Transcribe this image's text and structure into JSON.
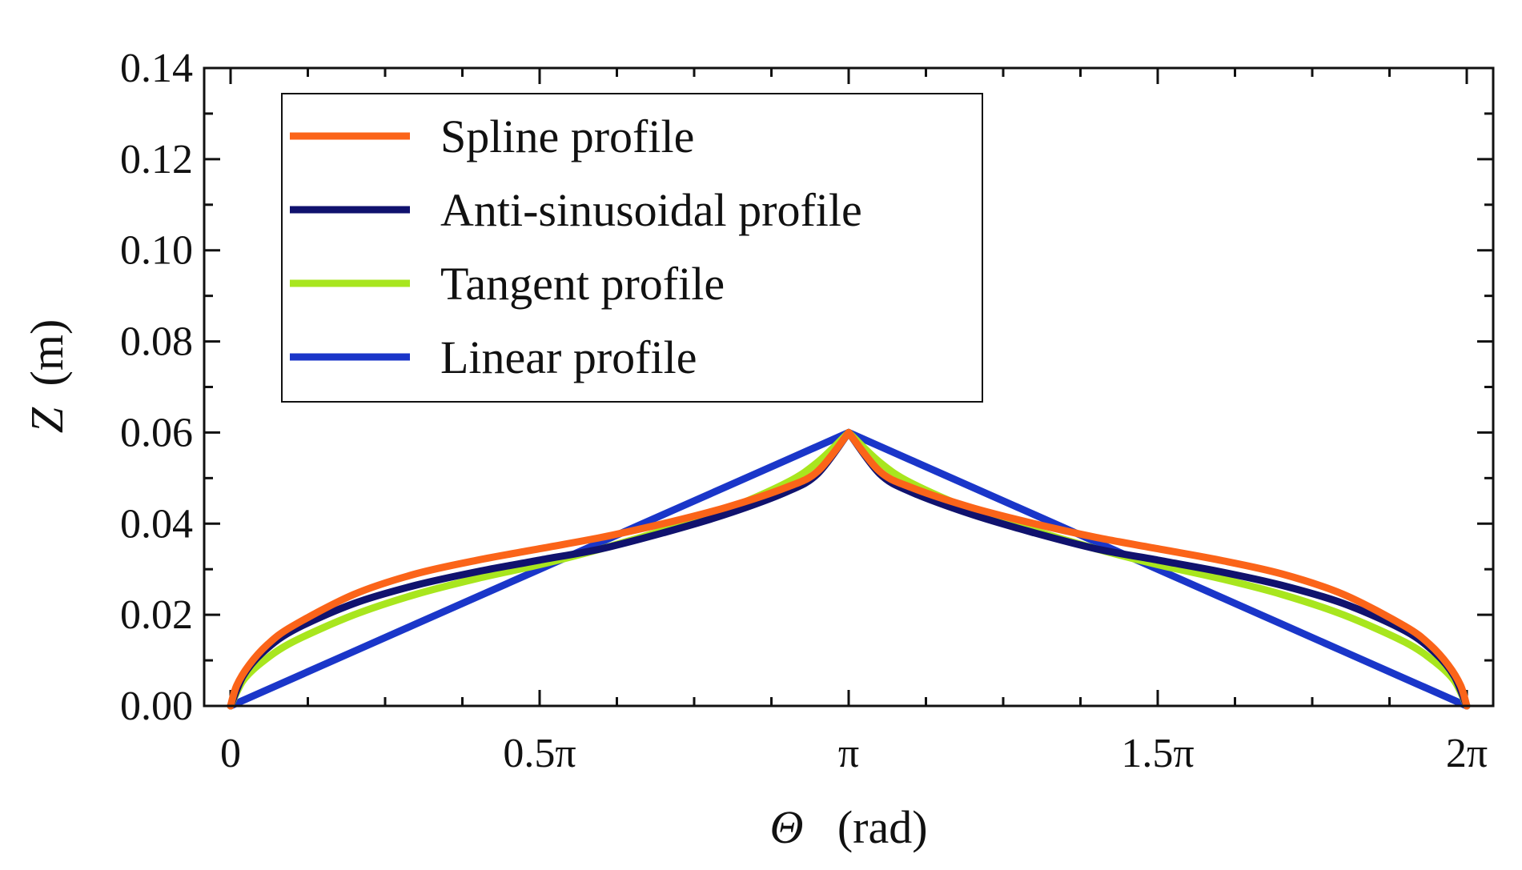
{
  "chart_data": {
    "type": "line",
    "title": "",
    "xlabel": "Θ (rad)",
    "xlabel_symbol": "Θ",
    "xlabel_unit": "(rad)",
    "ylabel": "Z (m)",
    "ylabel_symbol": "Z",
    "ylabel_unit": "(m)",
    "xlim": [
      0,
      2
    ],
    "ylim": [
      0,
      0.14
    ],
    "x_unit": "π rad",
    "x_ticks": [
      {
        "value": 0,
        "label": "0"
      },
      {
        "value": 0.5,
        "label": "0.5π"
      },
      {
        "value": 1,
        "label": "π"
      },
      {
        "value": 1.5,
        "label": "1.5π"
      },
      {
        "value": 2,
        "label": "2π"
      }
    ],
    "y_ticks": [
      {
        "value": 0,
        "label": "0.00"
      },
      {
        "value": 0.02,
        "label": "0.02"
      },
      {
        "value": 0.04,
        "label": "0.04"
      },
      {
        "value": 0.06,
        "label": "0.06"
      },
      {
        "value": 0.08,
        "label": "0.08"
      },
      {
        "value": 0.1,
        "label": "0.10"
      },
      {
        "value": 0.12,
        "label": "0.12"
      },
      {
        "value": 0.14,
        "label": "0.14"
      }
    ],
    "grid": false,
    "legend_position": "top-left",
    "series": [
      {
        "name": "Linear profile",
        "color": "#1a36c9",
        "x": [
          0,
          0.1,
          0.2,
          0.3,
          0.4,
          0.5,
          0.6,
          0.7,
          0.8,
          0.9,
          1.0,
          1.1,
          1.2,
          1.3,
          1.4,
          1.5,
          1.6,
          1.7,
          1.8,
          1.9,
          2.0
        ],
        "y": [
          0,
          0.006,
          0.012,
          0.018,
          0.024,
          0.03,
          0.036,
          0.042,
          0.048,
          0.054,
          0.06,
          0.054,
          0.048,
          0.042,
          0.036,
          0.03,
          0.024,
          0.018,
          0.012,
          0.006,
          0
        ]
      },
      {
        "name": "Tangent profile",
        "color": "#a8e61e",
        "x": [
          0,
          0.02,
          0.05,
          0.1,
          0.2,
          0.3,
          0.4,
          0.5,
          0.6,
          0.7,
          0.8,
          0.9,
          0.95,
          1.0,
          1.05,
          1.1,
          1.2,
          1.3,
          1.4,
          1.5,
          1.6,
          1.7,
          1.8,
          1.9,
          1.95,
          1.98,
          2.0
        ],
        "y": [
          0,
          0.0055,
          0.0095,
          0.014,
          0.02,
          0.0245,
          0.028,
          0.031,
          0.0345,
          0.0385,
          0.043,
          0.049,
          0.0535,
          0.06,
          0.0535,
          0.049,
          0.043,
          0.0385,
          0.0345,
          0.031,
          0.028,
          0.0245,
          0.02,
          0.014,
          0.0095,
          0.0055,
          0
        ]
      },
      {
        "name": "Anti-sinusoidal profile",
        "color": "#10126e",
        "x": [
          0,
          0.02,
          0.05,
          0.1,
          0.2,
          0.3,
          0.4,
          0.5,
          0.6,
          0.7,
          0.8,
          0.9,
          0.95,
          1.0,
          1.05,
          1.1,
          1.2,
          1.3,
          1.4,
          1.5,
          1.6,
          1.7,
          1.8,
          1.9,
          1.95,
          1.98,
          2.0
        ],
        "y": [
          0,
          0.0065,
          0.0115,
          0.0165,
          0.0225,
          0.0265,
          0.0295,
          0.032,
          0.0345,
          0.038,
          0.042,
          0.047,
          0.051,
          0.06,
          0.051,
          0.047,
          0.042,
          0.038,
          0.0345,
          0.032,
          0.0295,
          0.0265,
          0.0225,
          0.0165,
          0.0115,
          0.0065,
          0
        ]
      },
      {
        "name": "Spline profile",
        "color": "#fb6419",
        "x": [
          0,
          0.01,
          0.03,
          0.06,
          0.1,
          0.2,
          0.3,
          0.4,
          0.5,
          0.6,
          0.7,
          0.8,
          0.9,
          0.95,
          1.0,
          1.05,
          1.1,
          1.2,
          1.3,
          1.4,
          1.5,
          1.6,
          1.7,
          1.8,
          1.9,
          1.94,
          1.97,
          1.99,
          2.0
        ],
        "y": [
          0,
          0.0045,
          0.009,
          0.0135,
          0.0175,
          0.0245,
          0.029,
          0.032,
          0.0345,
          0.037,
          0.04,
          0.0435,
          0.048,
          0.0515,
          0.06,
          0.0515,
          0.048,
          0.0435,
          0.04,
          0.037,
          0.0345,
          0.032,
          0.029,
          0.0245,
          0.0175,
          0.0135,
          0.009,
          0.0045,
          0
        ]
      }
    ],
    "legend_order": [
      "Spline profile",
      "Anti-sinusoidal profile",
      "Tangent profile",
      "Linear profile"
    ]
  }
}
